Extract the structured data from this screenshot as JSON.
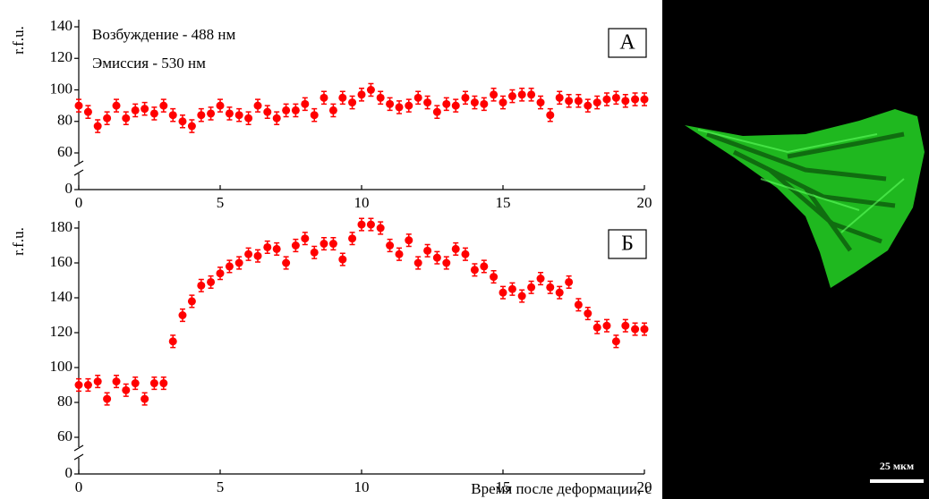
{
  "chart_data": [
    {
      "type": "scatter",
      "panel_label": "А",
      "ylabel": "r.f.u.",
      "annotations": [
        "Возбуждение -  488 нм",
        "Эмиссия - 530 нм"
      ],
      "x": [
        0,
        0.33,
        0.67,
        1,
        1.33,
        1.67,
        2,
        2.33,
        2.67,
        3,
        3.33,
        3.67,
        4,
        4.33,
        4.67,
        5,
        5.33,
        5.67,
        6,
        6.33,
        6.67,
        7,
        7.33,
        7.67,
        8,
        8.33,
        8.67,
        9,
        9.33,
        9.67,
        10,
        10.33,
        10.67,
        11,
        11.33,
        11.67,
        12,
        12.33,
        12.67,
        13,
        13.33,
        13.67,
        14,
        14.33,
        14.67,
        15,
        15.33,
        15.67,
        16,
        16.33,
        16.67,
        17,
        17.33,
        17.67,
        18,
        18.33,
        18.67,
        19,
        19.33,
        19.67,
        20
      ],
      "values": [
        90,
        86,
        77,
        82,
        90,
        82,
        87,
        88,
        85,
        90,
        84,
        80,
        77,
        84,
        85,
        90,
        85,
        84,
        82,
        90,
        86,
        82,
        87,
        87,
        91,
        84,
        95,
        87,
        95,
        92,
        97,
        100,
        95,
        91,
        89,
        90,
        95,
        92,
        86,
        91,
        90,
        95,
        92,
        91,
        97,
        92,
        96,
        97,
        97,
        92,
        84,
        95,
        93,
        93,
        90,
        92,
        94,
        95,
        93,
        94,
        94
      ],
      "error": 4,
      "color": "#ff0000",
      "xlim": [
        0,
        20
      ],
      "xticks": [
        0,
        5,
        10,
        15,
        20
      ],
      "ylim": [
        0,
        140
      ],
      "yticks": [
        0,
        60,
        80,
        100,
        120,
        140
      ],
      "y_axis_break": true
    },
    {
      "type": "scatter",
      "panel_label": "Б",
      "ylabel": "r.f.u.",
      "xlabel": "Время после деформации, с",
      "x": [
        0,
        0.33,
        0.67,
        1,
        1.33,
        1.67,
        2,
        2.33,
        2.67,
        3,
        3.33,
        3.67,
        4,
        4.33,
        4.67,
        5,
        5.33,
        5.67,
        6,
        6.33,
        6.67,
        7,
        7.33,
        7.67,
        8,
        8.33,
        8.67,
        9,
        9.33,
        9.67,
        10,
        10.33,
        10.67,
        11,
        11.33,
        11.67,
        12,
        12.33,
        12.67,
        13,
        13.33,
        13.67,
        14,
        14.33,
        14.67,
        15,
        15.33,
        15.67,
        16,
        16.33,
        16.67,
        17,
        17.33,
        17.67,
        18,
        18.33,
        18.67,
        19,
        19.33,
        19.67,
        20
      ],
      "values": [
        90,
        90,
        92,
        82,
        92,
        87,
        91,
        82,
        91,
        91,
        115,
        130,
        138,
        147,
        149,
        154,
        158,
        160,
        165,
        164,
        169,
        168,
        160,
        170,
        174,
        166,
        171,
        171,
        162,
        174,
        182,
        182,
        180,
        170,
        165,
        173,
        160,
        167,
        163,
        160,
        168,
        165,
        156,
        158,
        152,
        143,
        145,
        141,
        146,
        151,
        146,
        143,
        149,
        136,
        131,
        123,
        124,
        115,
        124,
        122,
        122
      ],
      "error": 3.5,
      "color": "#ff0000",
      "xlim": [
        0,
        20
      ],
      "xticks": [
        0,
        5,
        10,
        15,
        20
      ],
      "ylim": [
        0,
        180
      ],
      "yticks": [
        0,
        60,
        80,
        100,
        120,
        140,
        160,
        180
      ],
      "y_axis_break": true
    }
  ],
  "image": {
    "scale_bar_label": "25 мкм"
  }
}
